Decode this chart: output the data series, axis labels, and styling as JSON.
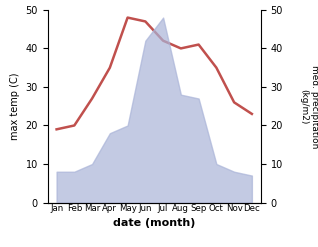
{
  "months": [
    "Jan",
    "Feb",
    "Mar",
    "Apr",
    "May",
    "Jun",
    "Jul",
    "Aug",
    "Sep",
    "Oct",
    "Nov",
    "Dec"
  ],
  "temperature": [
    19,
    20,
    27,
    35,
    48,
    47,
    42,
    40,
    41,
    35,
    26,
    23
  ],
  "precipitation": [
    8,
    8,
    10,
    18,
    20,
    42,
    48,
    28,
    27,
    10,
    8,
    7
  ],
  "temp_color": "#c0504d",
  "precip_color": "#aab4d8",
  "xlabel": "date (month)",
  "ylabel_left": "max temp (C)",
  "ylabel_right": "med. precipitation\n(kg/m2)",
  "ylim_left": [
    0,
    50
  ],
  "ylim_right": [
    0,
    50
  ],
  "yticks": [
    0,
    10,
    20,
    30,
    40,
    50
  ],
  "bg_color": "#ffffff"
}
